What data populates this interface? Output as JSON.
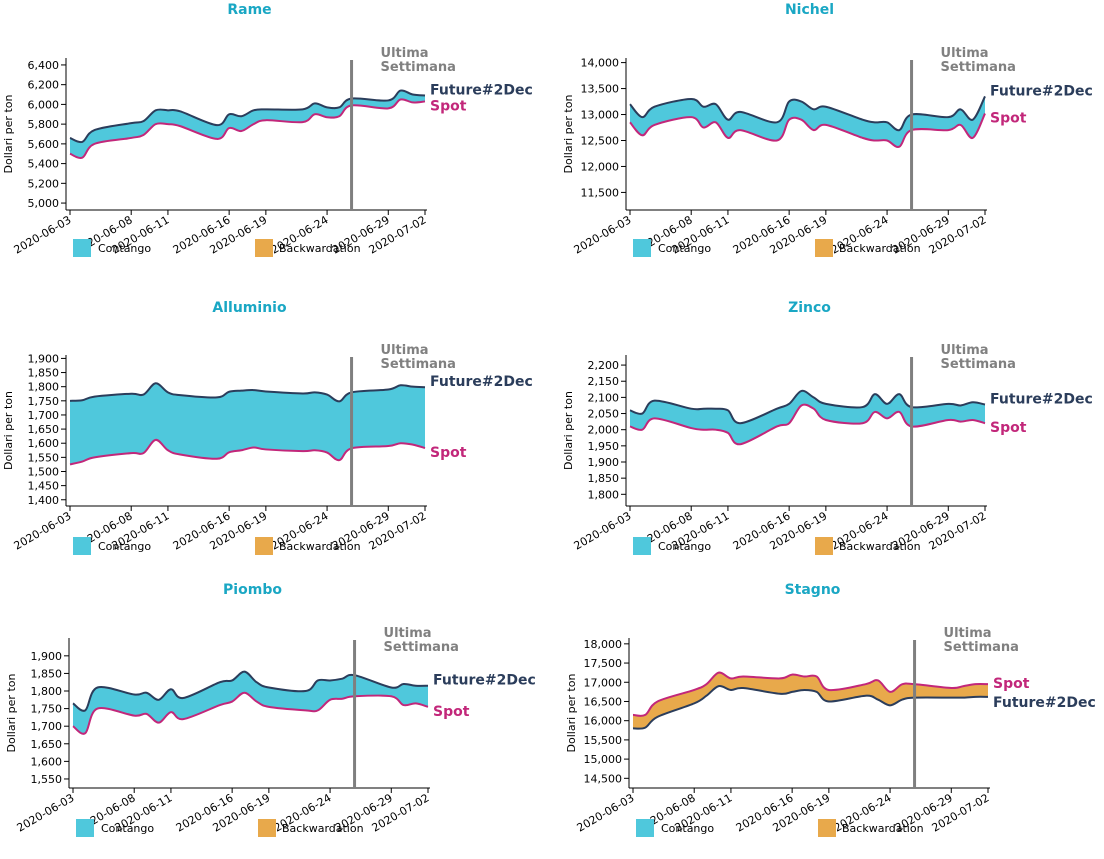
{
  "colors": {
    "title": "#1aa7c4",
    "future": "#2b3d5b",
    "spot": "#c2277a",
    "contango": "#4fc8dc",
    "backwardation": "#e8a94b",
    "week_line": "#7f7f7f",
    "week_text": "#808080"
  },
  "legend": {
    "contango": "Contango",
    "backwardation": "Backwardation"
  },
  "labels": {
    "future": "Future#2Dec",
    "spot": "Spot",
    "week_line1": "Ultima",
    "week_line2": "Settimana",
    "ylabel": "Dollari per ton"
  },
  "chart_data": [
    {
      "type": "area",
      "title": "Rame",
      "ylabel": "Dollari per ton",
      "x": [
        "2020-06-03",
        "2020-06-04",
        "2020-06-05",
        "2020-06-08",
        "2020-06-09",
        "2020-06-10",
        "2020-06-11",
        "2020-06-12",
        "2020-06-15",
        "2020-06-16",
        "2020-06-17",
        "2020-06-18",
        "2020-06-19",
        "2020-06-22",
        "2020-06-23",
        "2020-06-24",
        "2020-06-25",
        "2020-06-26",
        "2020-06-29",
        "2020-06-30",
        "2020-07-01",
        "2020-07-02"
      ],
      "xticks": [
        "2020-06-03",
        "2020-06-08",
        "2020-06-11",
        "2020-06-16",
        "2020-06-19",
        "2020-06-24",
        "2020-06-29",
        "2020-07-02"
      ],
      "ylim": [
        4950,
        6450
      ],
      "yticks": [
        5000,
        5200,
        5400,
        5600,
        5800,
        6000,
        6200,
        6400
      ],
      "week_marker": "2020-06-26",
      "series": [
        {
          "name": "Future#2Dec",
          "values": [
            5660,
            5620,
            5740,
            5810,
            5830,
            5940,
            5940,
            5930,
            5790,
            5900,
            5880,
            5940,
            5950,
            5950,
            6010,
            5970,
            5970,
            6060,
            6040,
            6140,
            6100,
            6090
          ]
        },
        {
          "name": "Spot",
          "values": [
            5500,
            5460,
            5600,
            5660,
            5690,
            5800,
            5800,
            5780,
            5650,
            5760,
            5730,
            5800,
            5840,
            5820,
            5900,
            5870,
            5880,
            5990,
            5960,
            6050,
            6020,
            6030
          ]
        }
      ]
    },
    {
      "type": "area",
      "title": "Nichel",
      "ylabel": "Dollari per ton",
      "x": [
        "2020-06-03",
        "2020-06-04",
        "2020-06-05",
        "2020-06-08",
        "2020-06-09",
        "2020-06-10",
        "2020-06-11",
        "2020-06-12",
        "2020-06-15",
        "2020-06-16",
        "2020-06-17",
        "2020-06-18",
        "2020-06-19",
        "2020-06-22",
        "2020-06-23",
        "2020-06-24",
        "2020-06-25",
        "2020-06-26",
        "2020-06-29",
        "2020-06-30",
        "2020-07-01",
        "2020-07-02"
      ],
      "xticks": [
        "2020-06-03",
        "2020-06-08",
        "2020-06-11",
        "2020-06-16",
        "2020-06-19",
        "2020-06-24",
        "2020-06-29",
        "2020-07-02"
      ],
      "ylim": [
        11200,
        14050
      ],
      "yticks": [
        11500,
        12000,
        12500,
        13000,
        13500,
        14000
      ],
      "week_marker": "2020-06-26",
      "series": [
        {
          "name": "Future#2Dec",
          "values": [
            13200,
            12950,
            13150,
            13300,
            13150,
            13200,
            12900,
            13050,
            12850,
            13250,
            13250,
            13100,
            13150,
            12900,
            12850,
            12850,
            12700,
            13000,
            12950,
            13100,
            12900,
            13350
          ]
        },
        {
          "name": "Spot",
          "values": [
            12850,
            12600,
            12800,
            12950,
            12750,
            12850,
            12550,
            12700,
            12500,
            12900,
            12900,
            12700,
            12800,
            12550,
            12500,
            12500,
            12380,
            12700,
            12700,
            12800,
            12550,
            13020
          ]
        }
      ]
    },
    {
      "type": "area",
      "title": "Alluminio",
      "ylabel": "Dollari per ton",
      "x": [
        "2020-06-03",
        "2020-06-04",
        "2020-06-05",
        "2020-06-08",
        "2020-06-09",
        "2020-06-10",
        "2020-06-11",
        "2020-06-12",
        "2020-06-15",
        "2020-06-16",
        "2020-06-17",
        "2020-06-18",
        "2020-06-19",
        "2020-06-22",
        "2020-06-23",
        "2020-06-24",
        "2020-06-25",
        "2020-06-26",
        "2020-06-29",
        "2020-06-30",
        "2020-07-01",
        "2020-07-02"
      ],
      "xticks": [
        "2020-06-03",
        "2020-06-08",
        "2020-06-11",
        "2020-06-16",
        "2020-06-19",
        "2020-06-24",
        "2020-06-29",
        "2020-07-02"
      ],
      "ylim": [
        1385,
        1905
      ],
      "yticks": [
        1400,
        1450,
        1500,
        1550,
        1600,
        1650,
        1700,
        1750,
        1800,
        1850,
        1900
      ],
      "week_marker": "2020-06-26",
      "series": [
        {
          "name": "Future#2Dec",
          "values": [
            1750,
            1752,
            1765,
            1775,
            1772,
            1812,
            1780,
            1770,
            1762,
            1782,
            1786,
            1788,
            1783,
            1776,
            1780,
            1772,
            1748,
            1780,
            1790,
            1805,
            1800,
            1798
          ]
        },
        {
          "name": "Spot",
          "values": [
            1525,
            1535,
            1550,
            1565,
            1565,
            1612,
            1575,
            1560,
            1545,
            1568,
            1575,
            1585,
            1578,
            1572,
            1575,
            1567,
            1540,
            1582,
            1590,
            1600,
            1595,
            1583
          ]
        }
      ]
    },
    {
      "type": "area",
      "title": "Zinco",
      "ylabel": "Dollari per ton",
      "x": [
        "2020-06-03",
        "2020-06-04",
        "2020-06-05",
        "2020-06-08",
        "2020-06-09",
        "2020-06-10",
        "2020-06-11",
        "2020-06-12",
        "2020-06-15",
        "2020-06-16",
        "2020-06-17",
        "2020-06-18",
        "2020-06-19",
        "2020-06-22",
        "2020-06-23",
        "2020-06-24",
        "2020-06-25",
        "2020-06-26",
        "2020-06-29",
        "2020-06-30",
        "2020-07-01",
        "2020-07-02"
      ],
      "xticks": [
        "2020-06-03",
        "2020-06-08",
        "2020-06-11",
        "2020-06-16",
        "2020-06-19",
        "2020-06-24",
        "2020-06-29",
        "2020-07-02"
      ],
      "ylim": [
        1770,
        2225
      ],
      "yticks": [
        1800,
        1850,
        1900,
        1950,
        2000,
        2050,
        2100,
        2150,
        2200
      ],
      "week_marker": "2020-06-26",
      "series": [
        {
          "name": "Future#2Dec",
          "values": [
            2060,
            2050,
            2090,
            2065,
            2065,
            2065,
            2060,
            2020,
            2065,
            2080,
            2120,
            2100,
            2080,
            2070,
            2110,
            2080,
            2110,
            2070,
            2080,
            2075,
            2085,
            2078
          ]
        },
        {
          "name": "Spot",
          "values": [
            2010,
            2000,
            2035,
            2005,
            2000,
            2000,
            1990,
            1955,
            2010,
            2020,
            2075,
            2065,
            2030,
            2020,
            2055,
            2035,
            2055,
            2010,
            2030,
            2025,
            2030,
            2020
          ]
        }
      ]
    },
    {
      "type": "area",
      "title": "Piombo",
      "ylabel": "Dollari per ton",
      "x": [
        "2020-06-03",
        "2020-06-04",
        "2020-06-05",
        "2020-06-08",
        "2020-06-09",
        "2020-06-10",
        "2020-06-11",
        "2020-06-12",
        "2020-06-15",
        "2020-06-16",
        "2020-06-17",
        "2020-06-18",
        "2020-06-19",
        "2020-06-22",
        "2020-06-23",
        "2020-06-24",
        "2020-06-25",
        "2020-06-26",
        "2020-06-29",
        "2020-06-30",
        "2020-07-01",
        "2020-07-02"
      ],
      "xticks": [
        "2020-06-03",
        "2020-06-08",
        "2020-06-11",
        "2020-06-16",
        "2020-06-19",
        "2020-06-24",
        "2020-06-29",
        "2020-07-02"
      ],
      "ylim": [
        1530,
        1945
      ],
      "yticks": [
        1550,
        1600,
        1650,
        1700,
        1750,
        1800,
        1850,
        1900
      ],
      "week_marker": "2020-06-26",
      "series": [
        {
          "name": "Future#2Dec",
          "values": [
            1765,
            1745,
            1810,
            1790,
            1795,
            1775,
            1805,
            1780,
            1825,
            1830,
            1855,
            1825,
            1810,
            1800,
            1830,
            1830,
            1835,
            1845,
            1810,
            1820,
            1815,
            1815
          ]
        },
        {
          "name": "Spot",
          "values": [
            1700,
            1680,
            1750,
            1730,
            1735,
            1710,
            1740,
            1720,
            1760,
            1770,
            1795,
            1770,
            1755,
            1745,
            1745,
            1775,
            1778,
            1785,
            1785,
            1760,
            1765,
            1755
          ]
        }
      ]
    },
    {
      "type": "area",
      "title": "Stagno",
      "ylabel": "Dollari per ton",
      "x": [
        "2020-06-03",
        "2020-06-04",
        "2020-06-05",
        "2020-06-08",
        "2020-06-09",
        "2020-06-10",
        "2020-06-11",
        "2020-06-12",
        "2020-06-15",
        "2020-06-16",
        "2020-06-17",
        "2020-06-18",
        "2020-06-19",
        "2020-06-22",
        "2020-06-23",
        "2020-06-24",
        "2020-06-25",
        "2020-06-26",
        "2020-06-29",
        "2020-06-30",
        "2020-07-01",
        "2020-07-02"
      ],
      "xticks": [
        "2020-06-03",
        "2020-06-08",
        "2020-06-11",
        "2020-06-16",
        "2020-06-19",
        "2020-06-24",
        "2020-06-29",
        "2020-07-02"
      ],
      "ylim": [
        14300,
        18100
      ],
      "yticks": [
        14500,
        15000,
        15500,
        16000,
        16500,
        17000,
        17500,
        18000
      ],
      "week_marker": "2020-06-26",
      "series": [
        {
          "name": "Future#2Dec",
          "values": [
            15800,
            15820,
            16100,
            16450,
            16650,
            16900,
            16800,
            16850,
            16700,
            16750,
            16800,
            16750,
            16500,
            16650,
            16550,
            16400,
            16550,
            16600,
            16600,
            16600,
            16620,
            16620
          ]
        },
        {
          "name": "Spot",
          "values": [
            16150,
            16150,
            16500,
            16800,
            16950,
            17250,
            17100,
            17150,
            17100,
            17200,
            17150,
            17150,
            16800,
            16950,
            17050,
            16750,
            16950,
            16950,
            16850,
            16900,
            16950,
            16950
          ]
        }
      ]
    }
  ]
}
